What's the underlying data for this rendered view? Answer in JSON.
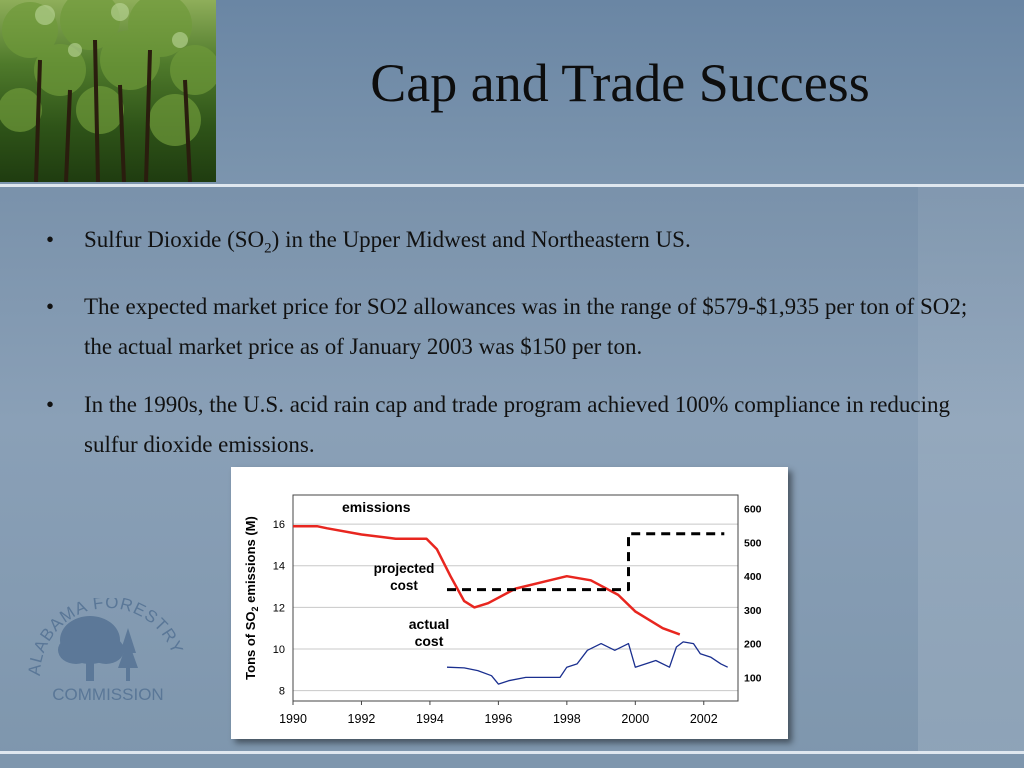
{
  "slide": {
    "title": "Cap and Trade Success",
    "bullets": [
      {
        "dot": "•",
        "text_pre": "Sulfur Dioxide (SO",
        "sub": "2",
        "text_post": ") in the Upper Midwest and Northeastern US."
      },
      {
        "dot": "•",
        "text": "The expected market price for SO2 allowances was in the range of $579-$1,935 per ton of SO2; the actual market price as of January 2003 was $150 per ton."
      },
      {
        "dot": "•",
        "text": "In the 1990s, the U.S. acid rain cap and trade program achieved 100% compliance in reducing sulfur dioxide emissions."
      }
    ],
    "logo": {
      "arc_text": "ALABAMA FORESTRY",
      "bottom_text": "COMMISSION"
    }
  },
  "colors": {
    "emissions": "#e8261f",
    "actual_cost": "#1a2f8f",
    "projected": "#000000"
  },
  "chart_data": {
    "type": "line",
    "x_ticks": [
      1990,
      1992,
      1994,
      1996,
      1998,
      2000,
      2002
    ],
    "xlim": [
      1990,
      2003
    ],
    "y_left": {
      "label": "Tons of SO2 emissions (M)",
      "ticks": [
        8,
        10,
        12,
        14,
        16
      ],
      "lim": [
        7.5,
        17.4
      ]
    },
    "y_right": {
      "ticks": [
        100,
        200,
        300,
        400,
        500,
        600
      ],
      "lim": [
        30,
        640
      ]
    },
    "labels": {
      "emissions": "emissions",
      "projected": [
        "projected",
        "cost"
      ],
      "actual": [
        "actual",
        "cost"
      ]
    },
    "series": [
      {
        "name": "emissions",
        "axis": "left",
        "style": "solid",
        "x": [
          1990,
          1990.7,
          1991,
          1992,
          1993,
          1993.9,
          1994.2,
          1994.6,
          1995,
          1995.3,
          1995.7,
          1996.5,
          1997.5,
          1998,
          1998.7,
          1999.5,
          2000,
          2000.8,
          2001.3
        ],
        "y": [
          15.9,
          15.9,
          15.8,
          15.5,
          15.3,
          15.3,
          14.8,
          13.5,
          12.3,
          12.0,
          12.2,
          12.9,
          13.3,
          13.5,
          13.3,
          12.6,
          11.8,
          11.0,
          10.7
        ]
      },
      {
        "name": "projected cost",
        "axis": "right",
        "style": "dashed",
        "x": [
          1994.5,
          1999.8,
          1999.8,
          2002.6
        ],
        "y": [
          360,
          360,
          525,
          525
        ]
      },
      {
        "name": "actual cost",
        "axis": "right",
        "style": "solid",
        "x": [
          1994.5,
          1995,
          1995.4,
          1995.8,
          1996,
          1996.3,
          1996.8,
          1997.3,
          1997.8,
          1998,
          1998.3,
          1998.6,
          1999,
          1999.4,
          1999.8,
          2000,
          2000.3,
          2000.6,
          2001,
          2001.2,
          2001.4,
          2001.7,
          2001.9,
          2002.2,
          2002.5,
          2002.7
        ],
        "y": [
          130,
          128,
          120,
          105,
          80,
          90,
          100,
          100,
          100,
          130,
          140,
          180,
          200,
          180,
          200,
          130,
          140,
          150,
          130,
          190,
          205,
          200,
          170,
          160,
          140,
          130
        ]
      }
    ]
  }
}
